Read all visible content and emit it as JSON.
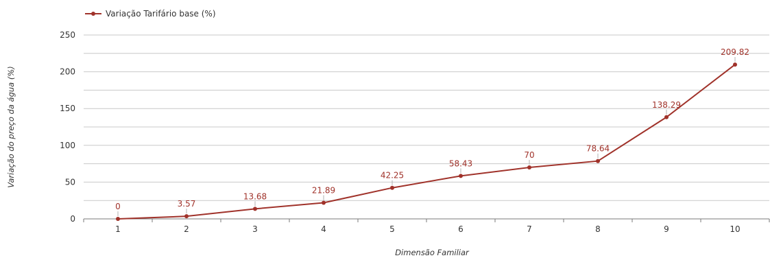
{
  "colors": {
    "series": "#a0322a",
    "grid": "#c8c8c8",
    "axis": "#7a7a7a"
  },
  "chart_data": {
    "type": "line",
    "x": [
      1,
      2,
      3,
      4,
      5,
      6,
      7,
      8,
      9,
      10
    ],
    "series": [
      {
        "name": "Variação Tarifário base (%)",
        "values": [
          0,
          3.57,
          13.68,
          21.89,
          42.25,
          58.43,
          70,
          78.64,
          138.29,
          209.82
        ]
      }
    ],
    "data_labels": [
      "0",
      "3.57",
      "13.68",
      "21.89",
      "42.25",
      "58.43",
      "70",
      "78.64",
      "138.29",
      "209.82"
    ],
    "xlabel": "Dimensão Familiar",
    "ylabel": "Variação do preço da água (%)",
    "ylim": [
      0,
      250
    ],
    "y_ticks": [
      0,
      50,
      100,
      150,
      200,
      250
    ],
    "grid": true,
    "legend": "top-left"
  }
}
